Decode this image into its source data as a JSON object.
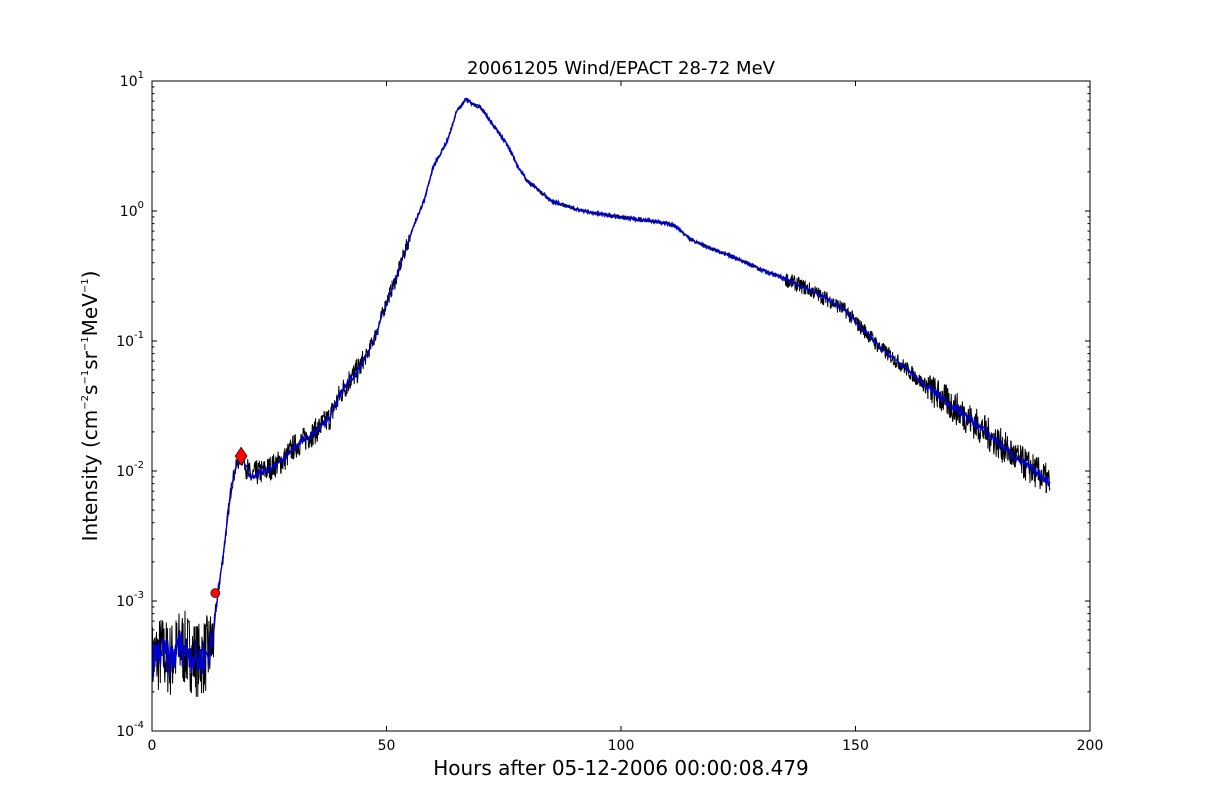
{
  "chart_data": {
    "type": "line",
    "title": "20061205 Wind/EPACT 28-72 MeV",
    "xlabel": "Hours after 05-12-2006 00:00:08.479",
    "ylabel": {
      "prefix": "Intensity (cm",
      "e1": "−2",
      "p1": "s",
      "e2": "−1",
      "p2": "sr",
      "e3": "−1",
      "p3": "MeV",
      "e4": "−1",
      "suffix": ")"
    },
    "xlim": [
      0,
      200
    ],
    "ylim": [
      0.0001,
      10
    ],
    "yscale": "log",
    "grid": false,
    "x_ticks": [
      {
        "value": 0,
        "label": "0"
      },
      {
        "value": 50,
        "label": "50"
      },
      {
        "value": 100,
        "label": "100"
      },
      {
        "value": 150,
        "label": "150"
      },
      {
        "value": 200,
        "label": "200"
      }
    ],
    "y_ticks": [
      {
        "value": 0.0001,
        "base": "10",
        "exp": "-4"
      },
      {
        "value": 0.001,
        "base": "10",
        "exp": "-3"
      },
      {
        "value": 0.01,
        "base": "10",
        "exp": "-2"
      },
      {
        "value": 0.1,
        "base": "10",
        "exp": "-1"
      },
      {
        "value": 1,
        "base": "10",
        "exp": "0"
      },
      {
        "value": 10,
        "base": "10",
        "exp": "1"
      }
    ],
    "series": [
      {
        "color": "#000000",
        "style": "raw",
        "x": [
          0,
          2,
          4,
          6,
          8,
          10,
          12,
          13,
          13.5,
          14,
          15,
          16,
          17,
          18,
          19,
          20,
          21,
          22,
          24,
          26,
          28,
          30,
          32,
          34,
          36,
          38,
          40,
          42,
          44,
          46,
          48,
          50,
          52,
          54,
          56,
          58,
          60,
          62,
          63,
          64,
          65,
          66,
          67,
          68,
          70,
          72,
          74,
          76,
          78,
          80,
          82,
          85,
          88,
          92,
          95,
          100,
          105,
          110,
          112,
          115,
          120,
          125,
          130,
          135,
          140,
          145,
          148,
          150,
          153,
          155,
          160,
          165,
          170,
          175,
          180,
          185,
          190,
          191.5
        ],
        "y": [
          0.00035,
          0.0004,
          0.00035,
          0.00045,
          0.0004,
          0.00035,
          0.0004,
          0.0005,
          0.0008,
          0.0011,
          0.002,
          0.004,
          0.008,
          0.011,
          0.013,
          0.011,
          0.009,
          0.0095,
          0.01,
          0.011,
          0.012,
          0.015,
          0.017,
          0.019,
          0.022,
          0.026,
          0.038,
          0.05,
          0.06,
          0.08,
          0.12,
          0.2,
          0.3,
          0.5,
          0.8,
          1.2,
          2.2,
          3.0,
          3.5,
          4.5,
          6.0,
          6.5,
          7.3,
          6.8,
          6.3,
          5.0,
          4.0,
          3.1,
          2.2,
          1.7,
          1.5,
          1.2,
          1.1,
          1.0,
          0.95,
          0.9,
          0.85,
          0.8,
          0.75,
          0.6,
          0.5,
          0.43,
          0.35,
          0.3,
          0.25,
          0.2,
          0.17,
          0.14,
          0.11,
          0.09,
          0.065,
          0.045,
          0.033,
          0.024,
          0.017,
          0.012,
          0.009,
          0.008
        ],
        "band": [
          {
            "x": 0,
            "y_min": 0.00018,
            "y_max": 0.001
          },
          {
            "x": 13,
            "y_min": 0.00018,
            "y_max": 0.001
          },
          {
            "x": 20,
            "y_min": 0.0075,
            "y_max": 0.014
          },
          {
            "x": 40,
            "y_min": 0.03,
            "y_max": 0.045
          },
          {
            "x": 150,
            "y_min": 0.12,
            "y_max": 0.16
          },
          {
            "x": 191.5,
            "y_min": 0.0055,
            "y_max": 0.011
          }
        ]
      },
      {
        "color": "#0000cc",
        "style": "smoothed",
        "x": [
          0,
          2,
          4,
          6,
          8,
          10,
          12,
          13,
          13.5,
          14,
          15,
          16,
          17,
          18,
          19,
          20,
          21,
          22,
          24,
          26,
          28,
          30,
          32,
          34,
          36,
          38,
          40,
          42,
          44,
          46,
          48,
          50,
          52,
          54,
          56,
          58,
          60,
          62,
          63,
          64,
          65,
          66,
          67,
          68,
          70,
          72,
          74,
          76,
          78,
          80,
          82,
          85,
          88,
          92,
          95,
          100,
          105,
          110,
          112,
          115,
          120,
          125,
          130,
          135,
          140,
          145,
          148,
          150,
          153,
          155,
          160,
          165,
          170,
          175,
          180,
          185,
          190,
          191.5
        ],
        "y": [
          0.00035,
          0.0004,
          0.00035,
          0.00045,
          0.0004,
          0.00035,
          0.0004,
          0.0005,
          0.0008,
          0.0011,
          0.002,
          0.004,
          0.008,
          0.011,
          0.013,
          0.011,
          0.009,
          0.0095,
          0.01,
          0.011,
          0.012,
          0.015,
          0.017,
          0.019,
          0.022,
          0.026,
          0.038,
          0.05,
          0.06,
          0.08,
          0.12,
          0.2,
          0.3,
          0.5,
          0.8,
          1.2,
          2.2,
          3.0,
          3.5,
          4.5,
          6.0,
          6.5,
          7.3,
          6.8,
          6.3,
          5.0,
          4.0,
          3.1,
          2.2,
          1.7,
          1.5,
          1.2,
          1.1,
          1.0,
          0.95,
          0.9,
          0.85,
          0.8,
          0.75,
          0.6,
          0.5,
          0.43,
          0.35,
          0.3,
          0.25,
          0.2,
          0.17,
          0.14,
          0.11,
          0.09,
          0.065,
          0.045,
          0.033,
          0.024,
          0.017,
          0.012,
          0.009,
          0.008
        ]
      }
    ],
    "markers": [
      {
        "shape": "circle",
        "color": "#ff0000",
        "x": 13.5,
        "y": 0.00115
      },
      {
        "shape": "diamond",
        "color": "#ff0000",
        "x": 19,
        "y": 0.013
      }
    ]
  }
}
